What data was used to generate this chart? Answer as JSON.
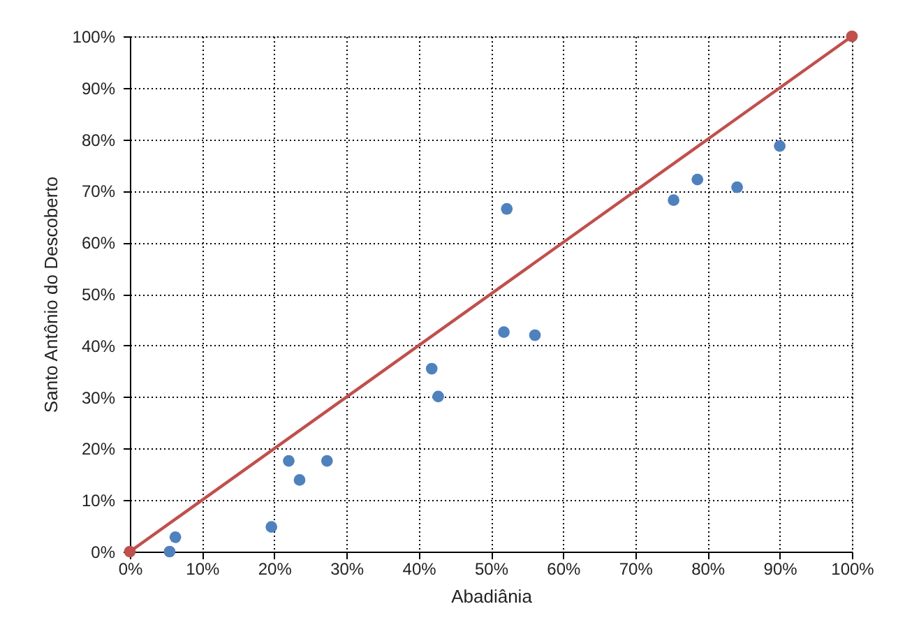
{
  "chart_data": {
    "type": "scatter",
    "xlabel": "Abadiânia",
    "ylabel": "Santo Antônio do Descoberto",
    "xlim": [
      0,
      100
    ],
    "ylim": [
      0,
      100
    ],
    "xticks": [
      {
        "value": 0,
        "label": "0%"
      },
      {
        "value": 10,
        "label": "10%"
      },
      {
        "value": 20,
        "label": "20%"
      },
      {
        "value": 30,
        "label": "30%"
      },
      {
        "value": 40,
        "label": "40%"
      },
      {
        "value": 50,
        "label": "50%"
      },
      {
        "value": 60,
        "label": "60%"
      },
      {
        "value": 70,
        "label": "70%"
      },
      {
        "value": 80,
        "label": "80%"
      },
      {
        "value": 90,
        "label": "90%"
      },
      {
        "value": 100,
        "label": "100%"
      }
    ],
    "yticks": [
      {
        "value": 0,
        "label": "0%"
      },
      {
        "value": 10,
        "label": "10%"
      },
      {
        "value": 20,
        "label": "20%"
      },
      {
        "value": 30,
        "label": "30%"
      },
      {
        "value": 40,
        "label": "40%"
      },
      {
        "value": 50,
        "label": "50%"
      },
      {
        "value": 60,
        "label": "60%"
      },
      {
        "value": 70,
        "label": "70%"
      },
      {
        "value": 80,
        "label": "80%"
      },
      {
        "value": 90,
        "label": "90%"
      },
      {
        "value": 100,
        "label": "100%"
      }
    ],
    "grid": true,
    "series": [
      {
        "type": "scatter",
        "color": "#4f81bd",
        "marker": "circle",
        "x": [
          5.5,
          6.3,
          19.6,
          22,
          23.5,
          27.3,
          41.8,
          42.7,
          51.8,
          52.2,
          56.1,
          75.3,
          78.6,
          84.1,
          90
        ],
        "values": [
          0,
          2.8,
          4.8,
          17.6,
          13.9,
          17.6,
          35.5,
          30.1,
          42.6,
          66.5,
          42,
          68.2,
          72.2,
          70.7,
          78.7
        ]
      },
      {
        "type": "line",
        "color": "#c0504d",
        "x": [
          0,
          100
        ],
        "values": [
          0,
          100
        ],
        "marker": "circle",
        "line_style": "solid"
      }
    ]
  }
}
